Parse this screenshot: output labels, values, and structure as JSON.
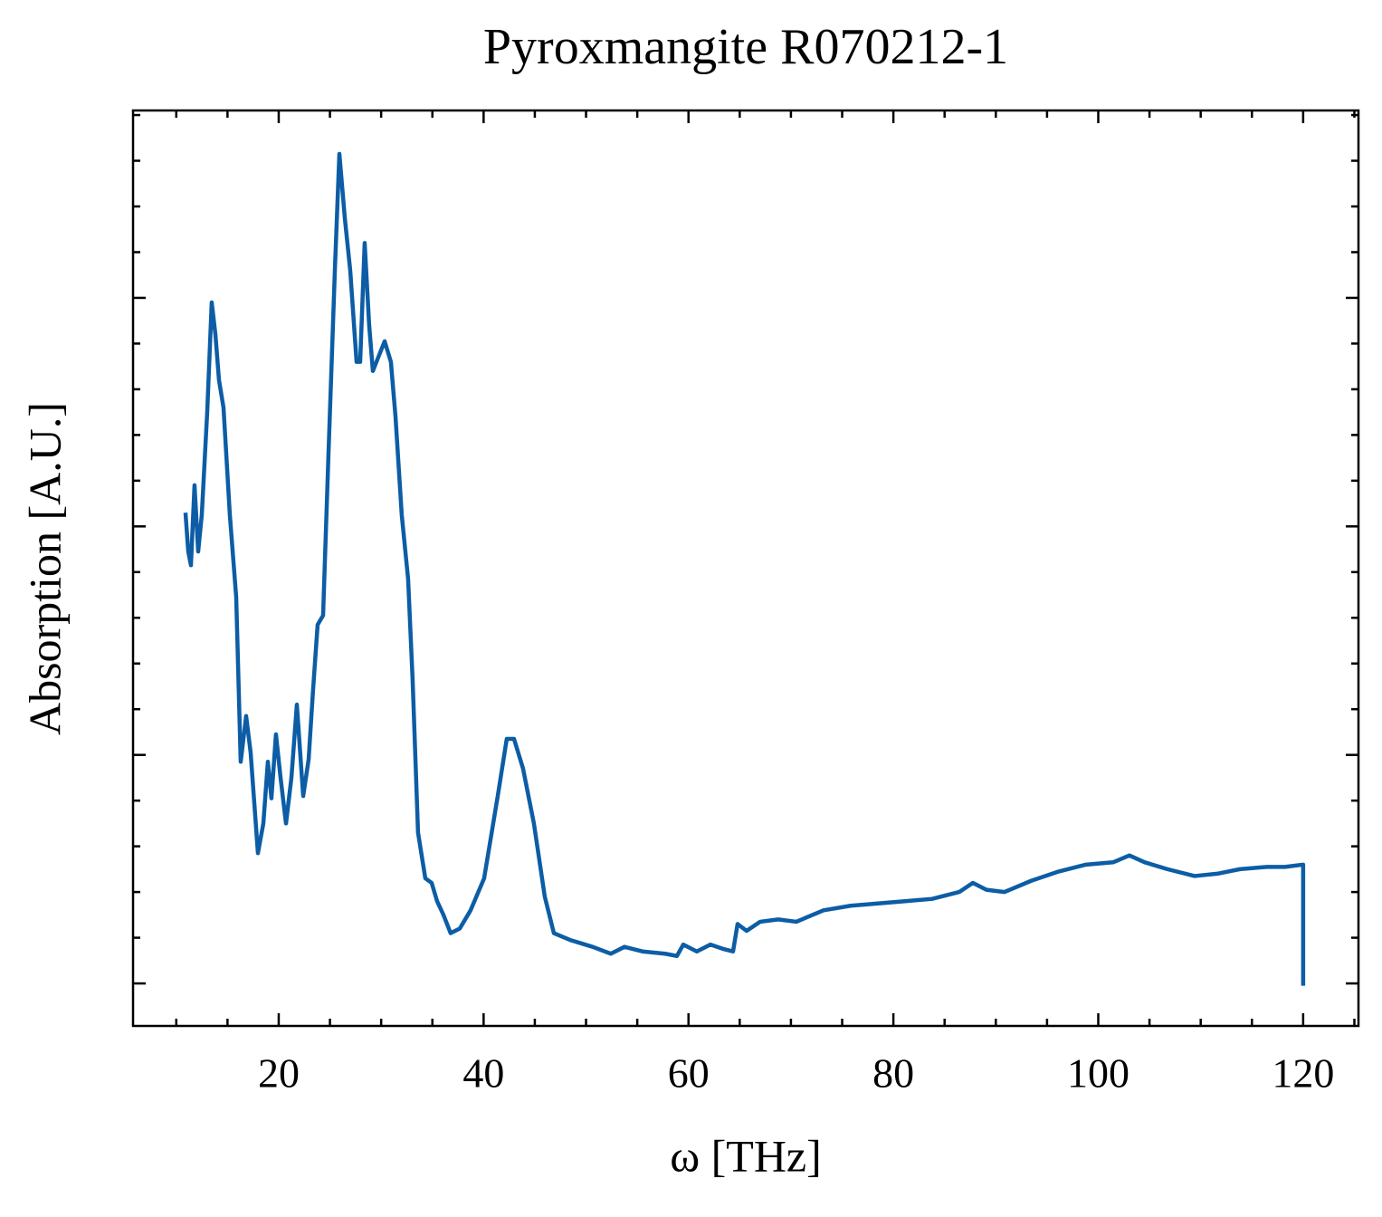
{
  "chart_data": {
    "type": "line",
    "title": "Pyroxmangite R070212-1",
    "xlabel": "ω [THz]",
    "ylabel": "Absorption [A.U.]",
    "xlim": [
      5.78,
      125.4
    ],
    "ylim": [
      -0.186,
      3.82
    ],
    "xticks": [
      20,
      40,
      60,
      80,
      100,
      120
    ],
    "xminorticks": [
      10,
      15,
      25,
      30,
      35,
      45,
      50,
      55,
      65,
      70,
      75,
      85,
      90,
      95,
      105,
      110,
      115,
      125
    ],
    "yticks": [
      0,
      1,
      2,
      3
    ],
    "yminorticks": [
      0.2,
      0.4,
      0.6,
      0.8,
      1.2,
      1.4,
      1.6,
      1.8,
      2.2,
      2.4,
      2.6,
      2.8,
      3.2,
      3.4,
      3.6,
      3.8
    ],
    "series": [
      {
        "color": "#0C5DA5",
        "x": [
          10.9,
          11.17,
          11.43,
          11.78,
          12.14,
          12.49,
          13.02,
          13.46,
          13.82,
          14.17,
          14.61,
          15.23,
          15.85,
          16.29,
          16.82,
          17.26,
          17.97,
          18.5,
          18.94,
          19.29,
          19.73,
          20.18,
          20.71,
          21.24,
          21.77,
          22.39,
          22.92,
          23.36,
          23.8,
          24.33,
          24.86,
          25.48,
          25.92,
          26.45,
          26.98,
          27.6,
          27.95,
          28.39,
          28.83,
          29.19,
          29.72,
          30.34,
          30.95,
          31.4,
          32.01,
          32.63,
          33.07,
          33.6,
          34.31,
          34.93,
          35.46,
          36.08,
          36.78,
          37.67,
          38.73,
          40.05,
          41.38,
          42.26,
          42.97,
          43.85,
          44.91,
          45.97,
          46.86,
          48.45,
          50.65,
          52.42,
          53.75,
          55.51,
          57.72,
          58.87,
          59.49,
          60.81,
          62.14,
          63.46,
          64.35,
          64.79,
          65.67,
          67.0,
          68.76,
          70.53,
          73.18,
          75.83,
          78.48,
          81.13,
          83.78,
          86.43,
          87.76,
          89.08,
          90.85,
          93.5,
          96.15,
          98.8,
          101.45,
          103.04,
          104.54,
          106.75,
          109.4,
          111.61,
          113.82,
          116.47,
          118.23,
          120.0,
          120.0
        ],
        "values": [
          2.06,
          1.89,
          1.83,
          2.18,
          1.89,
          2.05,
          2.5,
          2.98,
          2.84,
          2.64,
          2.52,
          2.05,
          1.69,
          0.97,
          1.17,
          1.01,
          0.57,
          0.7,
          0.97,
          0.81,
          1.09,
          0.9,
          0.7,
          0.9,
          1.22,
          0.82,
          0.98,
          1.29,
          1.57,
          1.61,
          2.32,
          3.12,
          3.63,
          3.35,
          3.12,
          2.72,
          2.72,
          3.24,
          2.88,
          2.68,
          2.74,
          2.81,
          2.72,
          2.48,
          2.05,
          1.77,
          1.33,
          0.66,
          0.46,
          0.44,
          0.36,
          0.3,
          0.22,
          0.24,
          0.32,
          0.46,
          0.82,
          1.07,
          1.07,
          0.94,
          0.7,
          0.38,
          0.22,
          0.19,
          0.16,
          0.13,
          0.16,
          0.14,
          0.13,
          0.12,
          0.17,
          0.14,
          0.17,
          0.15,
          0.14,
          0.26,
          0.23,
          0.27,
          0.28,
          0.27,
          0.32,
          0.34,
          0.35,
          0.36,
          0.37,
          0.4,
          0.44,
          0.41,
          0.4,
          0.45,
          0.49,
          0.52,
          0.53,
          0.56,
          0.53,
          0.5,
          0.47,
          0.48,
          0.5,
          0.51,
          0.51,
          0.52,
          -0.01
        ]
      }
    ]
  }
}
